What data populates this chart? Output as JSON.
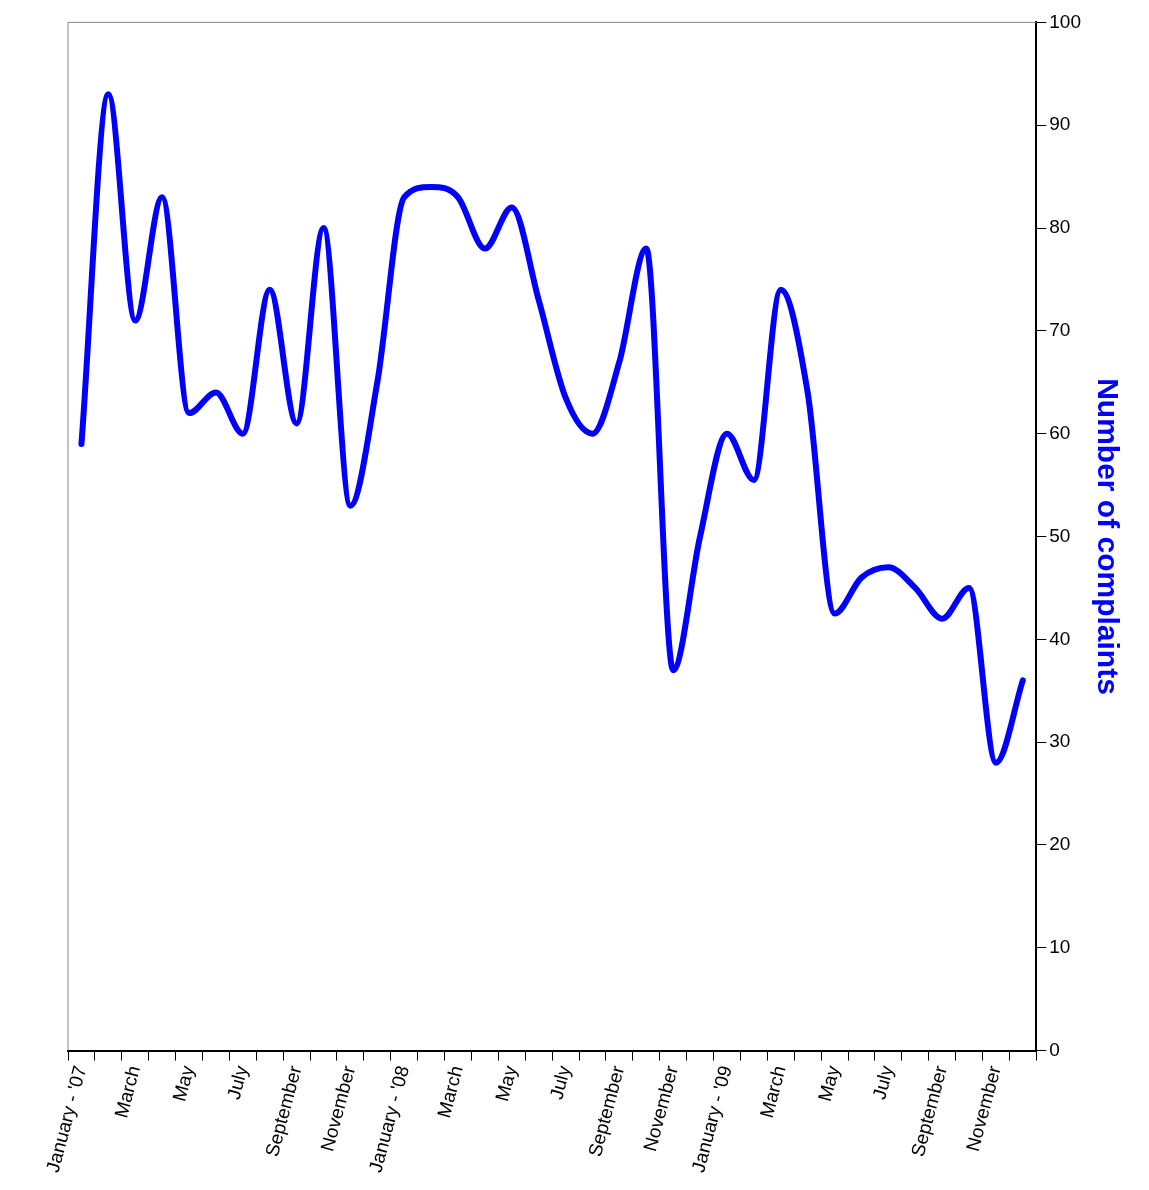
{
  "chart_data": {
    "type": "line",
    "y2label": "Number of complaints",
    "categories": [
      "January - '07",
      null,
      "March",
      null,
      "May",
      null,
      "July",
      null,
      "September",
      null,
      "November",
      null,
      "January - '08",
      null,
      "March",
      null,
      "May",
      null,
      "July",
      null,
      "September",
      null,
      "November",
      null,
      "January - '09",
      null,
      "March",
      null,
      "May",
      null,
      "July",
      null,
      "September",
      null,
      "November",
      null
    ],
    "series": [
      {
        "color": "#0000ff",
        "values": [
          59,
          93,
          71,
          83,
          62,
          64,
          60,
          74,
          61,
          80,
          53,
          65,
          83,
          84,
          83,
          78,
          82,
          73,
          63.5,
          60,
          67,
          78,
          37,
          50,
          60,
          55.5,
          74,
          64,
          42.5,
          46,
          47,
          45,
          42,
          45,
          28,
          36
        ],
        "axis": "y2"
      }
    ],
    "y2lim": [
      0,
      100
    ],
    "y2ticks": [
      0,
      10,
      20,
      30,
      40,
      50,
      60,
      70,
      80,
      90,
      100
    ],
    "grid": false,
    "legend": false,
    "marker": "none",
    "line_style": "solid"
  }
}
